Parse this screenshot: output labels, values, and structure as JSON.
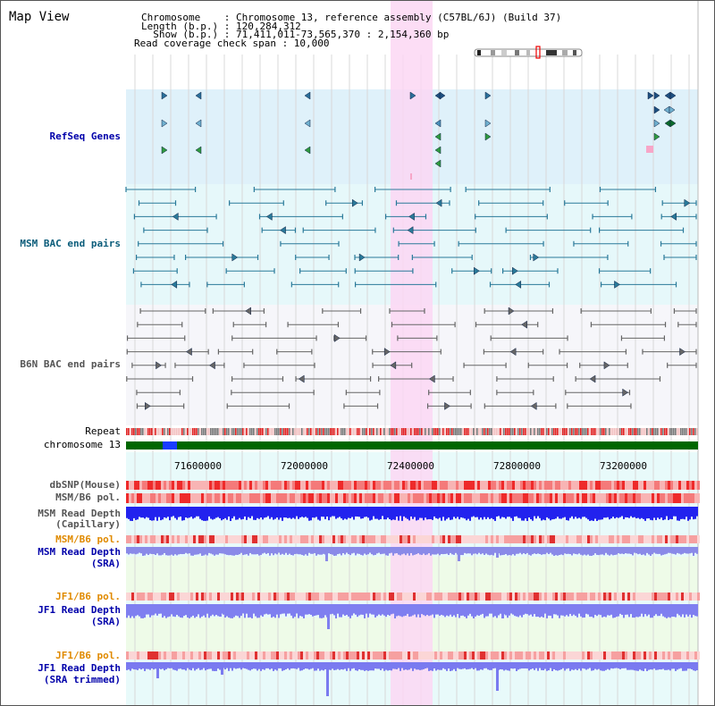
{
  "view": {
    "title": "Map View",
    "chromosome_line": "Chromosome    : Chromosome 13, reference assembly (C57BL/6J) (Build 37)",
    "length_line": "Length (b.p.) : 120,284,312",
    "show_line": "  Show (b.p.) : 71,411,011-73,565,370 : 2,154,360 bp",
    "coverage_line": "Read coverage check span : 10,000"
  },
  "tracks": {
    "refseq": "RefSeq Genes",
    "msm_bac": "MSM BAC end pairs",
    "b6n_bac": "B6N BAC end pairs",
    "repeat": "Repeat",
    "chromosome": "chromosome 13",
    "dbsnp": "dbSNP(Mouse)",
    "msm_b6_pol_1": "MSM/B6 pol.",
    "msm_read_depth_cap_1": "MSM Read Depth",
    "msm_read_depth_cap_2": "(Capillary)",
    "msm_b6_pol_2": "MSM/B6 pol.",
    "msm_read_depth_sra_1": "MSM Read Depth",
    "msm_read_depth_sra_2": "(SRA)",
    "jf1_b6_pol_1": "JF1/B6 pol.",
    "jf1_read_depth_sra_1": "JF1 Read Depth",
    "jf1_read_depth_sra_2": "(SRA)",
    "jf1_b6_pol_2": "JF1/B6 pol.",
    "jf1_read_depth_trim_1": "JF1 Read Depth",
    "jf1_read_depth_trim_2": "(SRA trimmed)"
  },
  "axis": {
    "ticks": [
      "71600000",
      "72000000",
      "72400000",
      "72800000",
      "73200000"
    ]
  },
  "colors": {
    "refseq_bg": "#dff1fa",
    "msm_bg": "#e6f8fa",
    "b6n_bg": "#f6f6fa",
    "highlight": "#fbd7f3",
    "chrom_green": "#006600",
    "chrom_blue": "#1a3cff",
    "teal": "#2a7a9a",
    "grey": "#666666",
    "snp_red": "#ee3333",
    "depth_blue": "#2222ee",
    "depth_light": "#8888ff",
    "orange": "#e08a00"
  }
}
